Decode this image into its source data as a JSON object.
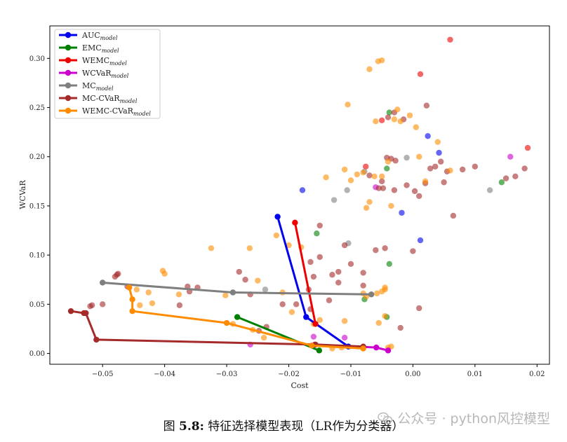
{
  "chart_data": {
    "type": "scatter",
    "xlabel": "Cost",
    "ylabel": "WCVaR",
    "xlim": [
      -0.0585,
      0.022
    ],
    "ylim": [
      -0.011,
      0.333
    ],
    "xticks": [
      -0.05,
      -0.04,
      -0.03,
      -0.02,
      -0.01,
      0.0,
      0.01,
      0.02
    ],
    "xtick_labels": [
      "−0.05",
      "−0.04",
      "−0.03",
      "−0.02",
      "−0.01",
      "0.00",
      "0.01",
      "0.02"
    ],
    "yticks": [
      0.0,
      0.05,
      0.1,
      0.15,
      0.2,
      0.25,
      0.3
    ],
    "ytick_labels": [
      "0.00",
      "0.05",
      "0.10",
      "0.15",
      "0.20",
      "0.25",
      "0.30"
    ],
    "legend_position": "top-left",
    "series": [
      {
        "name": "AUC",
        "sub": "model",
        "color": "#0000ee",
        "line": [
          [
            -0.0218,
            0.139
          ],
          [
            -0.0172,
            0.037
          ],
          [
            -0.0104,
            0.007
          ]
        ],
        "points": [
          [
            -0.0178,
            0.166
          ],
          [
            0.0024,
            0.221
          ],
          [
            0.0042,
            0.204
          ],
          [
            0.0012,
            0.115
          ],
          [
            -0.0018,
            0.143
          ]
        ]
      },
      {
        "name": "EMC",
        "sub": "model",
        "color": "#008000",
        "line": [
          [
            -0.0283,
            0.037
          ],
          [
            -0.0151,
            0.003
          ]
        ],
        "points": [
          [
            -0.0155,
            0.122
          ],
          [
            -0.0038,
            0.245
          ],
          [
            -0.0042,
            0.188
          ],
          [
            -0.0038,
            0.091
          ],
          [
            -0.0078,
            0.055
          ],
          [
            -0.0042,
            0.037
          ],
          [
            0.0143,
            0.174
          ]
        ]
      },
      {
        "name": "WEMC",
        "sub": "model",
        "color": "#ee0000",
        "line": [
          [
            -0.019,
            0.133
          ],
          [
            -0.0157,
            0.03
          ]
        ],
        "points": [
          [
            0.006,
            0.319
          ],
          [
            0.0012,
            0.284
          ],
          [
            0.0185,
            0.209
          ],
          [
            -0.005,
            0.237
          ],
          [
            -0.0076,
            0.19
          ]
        ]
      },
      {
        "name": "WCVaR",
        "sub": "model",
        "color": "#cc00cc",
        "line": [
          [
            -0.0158,
            0.009
          ],
          [
            -0.0059,
            0.006
          ],
          [
            -0.004,
            0.003
          ]
        ],
        "points": [
          [
            -0.016,
            0.017
          ],
          [
            -0.011,
            0.016
          ],
          [
            -0.0262,
            0.009
          ],
          [
            0.0157,
            0.2
          ],
          [
            -0.006,
            0.169
          ]
        ]
      },
      {
        "name": "MC",
        "sub": "model",
        "color": "#7f7f7f",
        "line": [
          [
            -0.05,
            0.072
          ],
          [
            -0.029,
            0.062
          ],
          [
            -0.0067,
            0.06
          ]
        ],
        "points": [
          [
            -0.0238,
            0.065
          ],
          [
            -0.0127,
            0.156
          ],
          [
            -0.0106,
            0.166
          ],
          [
            -0.0104,
            0.112
          ],
          [
            -0.0078,
            0.185
          ],
          [
            0.0124,
            0.166
          ],
          [
            -0.001,
            0.199
          ]
        ]
      },
      {
        "name": "MC-CVaR",
        "sub": "model",
        "color": "#a52a2a",
        "line": [
          [
            -0.0551,
            0.043
          ],
          [
            -0.053,
            0.041
          ],
          [
            -0.0527,
            0.041
          ],
          [
            -0.051,
            0.014
          ],
          [
            -0.0157,
            0.009
          ],
          [
            -0.008,
            0.007
          ]
        ],
        "points": [
          [
            -0.052,
            0.048
          ],
          [
            -0.0517,
            0.049
          ],
          [
            -0.048,
            0.078
          ],
          [
            -0.0477,
            0.08
          ],
          [
            -0.0475,
            0.081
          ],
          [
            -0.046,
            0.068
          ],
          [
            -0.05,
            0.05
          ],
          [
            -0.0376,
            0.049
          ],
          [
            -0.0363,
            0.068
          ],
          [
            -0.036,
            0.063
          ],
          [
            -0.0347,
            0.067
          ],
          [
            -0.028,
            0.083
          ],
          [
            -0.027,
            0.075
          ],
          [
            -0.0262,
            0.06
          ],
          [
            -0.0248,
            0.023
          ],
          [
            -0.0236,
            0.027
          ],
          [
            -0.021,
            0.05
          ],
          [
            -0.0188,
            0.05
          ],
          [
            -0.0168,
            0.065
          ],
          [
            -0.016,
            0.078
          ],
          [
            -0.015,
            0.098
          ],
          [
            -0.013,
            0.08
          ],
          [
            -0.012,
            0.083
          ],
          [
            -0.01,
            0.091
          ],
          [
            -0.011,
            0.11
          ],
          [
            -0.008,
            0.082
          ],
          [
            -0.008,
            0.069
          ],
          [
            -0.006,
            0.105
          ],
          [
            -0.0045,
            0.107
          ],
          [
            -0.002,
            0.026
          ],
          [
            0.0,
            0.104
          ],
          [
            0.001,
            0.046
          ],
          [
            0.005,
            0.174
          ],
          [
            0.0065,
            0.14
          ],
          [
            -0.003,
            0.166
          ],
          [
            -0.001,
            0.171
          ],
          [
            0.0003,
            0.165
          ],
          [
            0.001,
            0.16
          ],
          [
            0.002,
            0.173
          ],
          [
            0.0028,
            0.188
          ],
          [
            0.0036,
            0.19
          ],
          [
            0.0045,
            0.195
          ],
          [
            0.0055,
            0.185
          ],
          [
            0.008,
            0.187
          ],
          [
            0.01,
            0.19
          ],
          [
            0.015,
            0.178
          ],
          [
            0.0165,
            0.18
          ],
          [
            0.018,
            0.188
          ],
          [
            -0.0055,
            0.168
          ],
          [
            -0.007,
            0.181
          ],
          [
            -0.0042,
            0.199
          ],
          [
            -0.0028,
            0.196
          ],
          [
            0.0022,
            0.252
          ],
          [
            -0.0048,
            0.168
          ],
          [
            -0.0035,
            0.198
          ],
          [
            -0.005,
            0.175
          ],
          [
            -0.004,
            0.24
          ],
          [
            -0.003,
            0.245
          ],
          [
            -0.0015,
            0.238
          ],
          [
            -0.015,
            0.13
          ],
          [
            -0.0165,
            0.093
          ],
          [
            -0.0165,
            0.045
          ],
          [
            -0.012,
            0.072
          ],
          [
            -0.0135,
            0.054
          ]
        ]
      },
      {
        "name": "WEMC-CVaR",
        "sub": "model",
        "color": "#ff8c00",
        "line": [
          [
            -0.0457,
            0.067
          ],
          [
            -0.0452,
            0.055
          ],
          [
            -0.0452,
            0.043
          ],
          [
            -0.03,
            0.031
          ],
          [
            -0.0163,
            0.008
          ],
          [
            -0.008,
            0.005
          ]
        ],
        "points": [
          [
            -0.0445,
            0.065
          ],
          [
            -0.044,
            0.049
          ],
          [
            -0.0426,
            0.062
          ],
          [
            -0.042,
            0.051
          ],
          [
            -0.0403,
            0.084
          ],
          [
            -0.04,
            0.081
          ],
          [
            -0.0377,
            0.06
          ],
          [
            -0.0325,
            0.107
          ],
          [
            -0.0302,
            0.059
          ],
          [
            -0.029,
            0.03
          ],
          [
            -0.0263,
            0.107
          ],
          [
            -0.0258,
            0.024
          ],
          [
            -0.025,
            0.074
          ],
          [
            -0.024,
            0.016
          ],
          [
            -0.022,
            0.12
          ],
          [
            -0.021,
            0.062
          ],
          [
            -0.02,
            0.11
          ],
          [
            -0.0195,
            0.042
          ],
          [
            -0.018,
            0.108
          ],
          [
            -0.016,
            0.03
          ],
          [
            -0.015,
            0.034
          ],
          [
            -0.014,
            0.179
          ],
          [
            -0.013,
            0.005
          ],
          [
            -0.0115,
            0.006
          ],
          [
            -0.011,
            0.187
          ],
          [
            -0.0105,
            0.253
          ],
          [
            -0.01,
            0.176
          ],
          [
            -0.009,
            0.182
          ],
          [
            -0.008,
            0.184
          ],
          [
            -0.0075,
            0.148
          ],
          [
            -0.007,
            0.154
          ],
          [
            -0.007,
            0.289
          ],
          [
            -0.0062,
            0.18
          ],
          [
            -0.006,
            0.236
          ],
          [
            -0.0056,
            0.297
          ],
          [
            -0.005,
            0.298
          ],
          [
            -0.005,
            0.063
          ],
          [
            -0.0045,
            0.067
          ],
          [
            -0.004,
            0.195
          ],
          [
            -0.003,
            0.238
          ],
          [
            -0.0025,
            0.248
          ],
          [
            -0.002,
            0.236
          ],
          [
            -0.0005,
            0.242
          ],
          [
            0.0005,
            0.23
          ],
          [
            0.001,
            0.2
          ],
          [
            0.002,
            0.175
          ],
          [
            0.004,
            0.215
          ],
          [
            0.006,
            0.186
          ],
          [
            -0.0058,
            0.061
          ],
          [
            -0.0055,
            0.031
          ],
          [
            -0.0045,
            0.038
          ],
          [
            -0.004,
            0.006
          ],
          [
            -0.0035,
            0.007
          ],
          [
            -0.005,
            0.18
          ],
          [
            -0.0035,
            0.15
          ],
          [
            -0.0045,
            0.065
          ],
          [
            -0.008,
            0.061
          ],
          [
            -0.0075,
            0.058
          ],
          [
            -0.011,
            0.033
          ]
        ]
      }
    ]
  },
  "caption": {
    "prefix": "图",
    "number": "5.8:",
    "text": "特征选择模型表现（LR作为分类器）"
  },
  "watermark": {
    "icon": "wechat-icon",
    "text": "公众号 · python风控模型"
  }
}
